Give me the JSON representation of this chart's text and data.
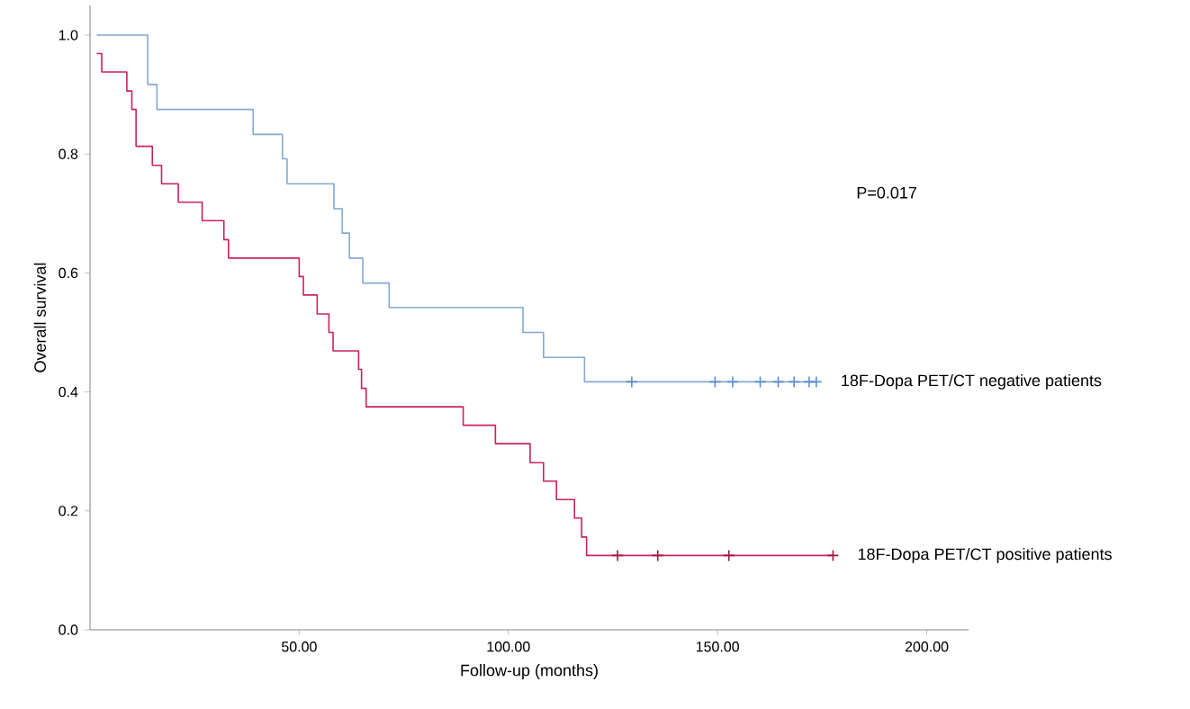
{
  "chart_data": {
    "type": "step",
    "xlabel": "Follow-up (months)",
    "ylabel": "Overall survival",
    "xlim": [
      0,
      210
    ],
    "ylim": [
      0,
      1.05
    ],
    "xticks": [
      {
        "value": 50,
        "label": "50.00"
      },
      {
        "value": 100,
        "label": "100.00"
      },
      {
        "value": 150,
        "label": "150.00"
      },
      {
        "value": 200,
        "label": "200.00"
      }
    ],
    "yticks": [
      {
        "value": 0,
        "label": "0.0"
      },
      {
        "value": 0.2,
        "label": "0.2"
      },
      {
        "value": 0.4,
        "label": "0.4"
      },
      {
        "value": 0.6,
        "label": "0.6"
      },
      {
        "value": 0.8,
        "label": "0.8"
      },
      {
        "value": 1.0,
        "label": "1.0"
      }
    ],
    "annotations": [
      "P=0.017"
    ],
    "series": [
      {
        "name": "18F-Dopa PET/CT negative patients",
        "marker": "none",
        "color": "#84a9d4",
        "x": [
          1.6,
          13.8,
          16,
          39,
          46,
          47.1,
          58.3,
          60.3,
          62,
          65.2,
          71.5,
          103.5,
          108.4,
          118.2,
          173.6
        ],
        "values": [
          1.0,
          0.917,
          0.875,
          0.833,
          0.792,
          0.75,
          0.708,
          0.667,
          0.625,
          0.583,
          0.542,
          0.5,
          0.458,
          0.417,
          0.417
        ]
      },
      {
        "name": "18F-Dopa PET/CT positive patients",
        "marker": "none",
        "color": "#c8245a",
        "x": [
          1.6,
          2.8,
          8.8,
          10,
          11,
          14.9,
          17.1,
          21.1,
          26.8,
          32,
          33.1,
          50,
          51,
          54.3,
          57.1,
          58.1,
          64.2,
          64.9,
          66,
          89.2,
          96.9,
          105.2,
          108.4,
          111.5,
          115.8,
          117.5,
          118.7,
          177.6
        ],
        "values": [
          0.969,
          0.938,
          0.906,
          0.875,
          0.813,
          0.781,
          0.75,
          0.719,
          0.688,
          0.656,
          0.625,
          0.594,
          0.563,
          0.531,
          0.5,
          0.469,
          0.438,
          0.406,
          0.375,
          0.344,
          0.313,
          0.281,
          0.25,
          0.219,
          0.188,
          0.156,
          0.125,
          0.125
        ]
      },
      {
        "type": "scatter",
        "marker": "cross",
        "color": "#5b8fd0",
        "x": [
          129.5,
          149.4,
          153.6,
          160.2,
          164.5,
          168.3,
          171.9,
          173.6
        ],
        "values": [
          0.417,
          0.417,
          0.417,
          0.417,
          0.417,
          0.417,
          0.417,
          0.417
        ]
      },
      {
        "type": "scatter",
        "marker": "cross",
        "color": "#9e1a40",
        "x": [
          126.1,
          135.7,
          152.7,
          177.6
        ],
        "values": [
          0.125,
          0.125,
          0.125,
          0.125
        ]
      }
    ]
  }
}
